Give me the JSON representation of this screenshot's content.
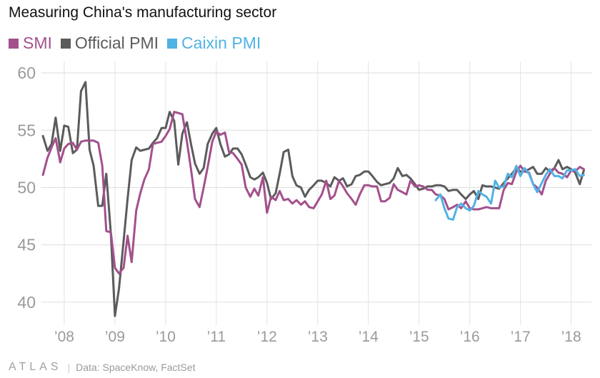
{
  "chart_data": {
    "type": "line",
    "title": "Measuring China's manufacturing sector",
    "xlabel": "",
    "ylabel": "",
    "ylim": [
      38,
      61
    ],
    "xlim": [
      2007.55,
      2018.4
    ],
    "yticks": [
      40,
      45,
      50,
      55,
      60
    ],
    "xticks": [
      {
        "value": 2008,
        "label": "’08"
      },
      {
        "value": 2009,
        "label": "’09"
      },
      {
        "value": 2010,
        "label": "’10"
      },
      {
        "value": 2011,
        "label": "’11"
      },
      {
        "value": 2012,
        "label": "’12"
      },
      {
        "value": 2013,
        "label": "’13"
      },
      {
        "value": 2014,
        "label": "’14"
      },
      {
        "value": 2015,
        "label": "’15"
      },
      {
        "value": 2016,
        "label": "’16"
      },
      {
        "value": 2017,
        "label": "’17"
      },
      {
        "value": 2018,
        "label": "’18"
      }
    ],
    "grid": true,
    "legend_position": "top-left",
    "series": [
      {
        "name": "SMI",
        "color": "#a3508c",
        "x": [
          2007.58,
          2007.67,
          2007.75,
          2007.83,
          2007.92,
          2008.0,
          2008.08,
          2008.17,
          2008.25,
          2008.33,
          2008.42,
          2008.5,
          2008.58,
          2008.67,
          2008.75,
          2008.83,
          2008.92,
          2009.0,
          2009.08,
          2009.17,
          2009.25,
          2009.33,
          2009.42,
          2009.5,
          2009.58,
          2009.67,
          2009.75,
          2009.83,
          2009.92,
          2010.0,
          2010.08,
          2010.17,
          2010.25,
          2010.33,
          2010.42,
          2010.5,
          2010.58,
          2010.67,
          2010.75,
          2010.83,
          2010.92,
          2011.0,
          2011.08,
          2011.17,
          2011.25,
          2011.33,
          2011.42,
          2011.5,
          2011.58,
          2011.67,
          2011.75,
          2011.83,
          2011.92,
          2012.0,
          2012.08,
          2012.17,
          2012.25,
          2012.33,
          2012.42,
          2012.5,
          2012.58,
          2012.67,
          2012.75,
          2012.83,
          2012.92,
          2013.0,
          2013.08,
          2013.17,
          2013.25,
          2013.33,
          2013.42,
          2013.5,
          2013.58,
          2013.67,
          2013.75,
          2013.83,
          2013.92,
          2014.0,
          2014.08,
          2014.17,
          2014.25,
          2014.33,
          2014.42,
          2014.5,
          2014.58,
          2014.67,
          2014.75,
          2014.83,
          2014.92,
          2015.0,
          2015.08,
          2015.17,
          2015.25,
          2015.33,
          2015.42,
          2015.5,
          2015.58,
          2015.67,
          2015.75,
          2015.83,
          2015.92,
          2016.0,
          2016.08,
          2016.17,
          2016.25,
          2016.33,
          2016.42,
          2016.5,
          2016.58,
          2016.67,
          2016.75,
          2016.83,
          2016.92,
          2017.0,
          2017.08,
          2017.17,
          2017.25,
          2017.33,
          2017.42,
          2017.5,
          2017.58,
          2017.67,
          2017.75,
          2017.83,
          2017.92,
          2018.0,
          2018.08,
          2018.17,
          2018.25
        ],
        "values": [
          51.1,
          52.6,
          53.5,
          54.3,
          52.2,
          53.4,
          53.8,
          53.9,
          53.3,
          54.0,
          54.1,
          54.1,
          54.1,
          53.9,
          51.9,
          46.2,
          46.1,
          43.0,
          42.5,
          43.0,
          45.8,
          43.5,
          48.0,
          49.5,
          50.7,
          51.6,
          53.8,
          53.9,
          54.0,
          54.5,
          55.1,
          56.6,
          56.5,
          56.4,
          54.0,
          51.6,
          49.0,
          48.3,
          50.0,
          51.8,
          54.0,
          54.9,
          54.6,
          54.8,
          53.1,
          53.0,
          52.5,
          52.0,
          50.0,
          49.2,
          49.9,
          49.3,
          50.9,
          47.8,
          49.2,
          48.9,
          49.7,
          48.9,
          49.0,
          48.6,
          48.9,
          48.5,
          48.8,
          48.3,
          48.2,
          48.8,
          49.4,
          50.6,
          49.0,
          49.3,
          50.6,
          50.1,
          49.5,
          49.0,
          48.5,
          49.4,
          50.2,
          50.2,
          50.1,
          50.1,
          48.8,
          48.8,
          49.1,
          50.3,
          49.8,
          49.6,
          49.4,
          50.6,
          50.1,
          50.2,
          50.1,
          49.8,
          49.8,
          49.4,
          49.3,
          49.0,
          48.1,
          48.3,
          48.5,
          48.2,
          48.8,
          48.2,
          48.1,
          48.1,
          48.2,
          48.3,
          48.2,
          48.2,
          48.2,
          49.8,
          50.4,
          50.3,
          51.4,
          51.9,
          51.4,
          51.3,
          50.3,
          50.0,
          49.4,
          50.6,
          51.2,
          51.7,
          51.3,
          51.2,
          50.9,
          51.5,
          51.4,
          51.8,
          51.6
        ]
      },
      {
        "name": "Official PMI",
        "color": "#5b5b5b",
        "x": [
          2007.58,
          2007.67,
          2007.75,
          2007.83,
          2007.92,
          2008.0,
          2008.08,
          2008.17,
          2008.25,
          2008.33,
          2008.42,
          2008.5,
          2008.58,
          2008.67,
          2008.75,
          2008.83,
          2008.92,
          2009.0,
          2009.08,
          2009.17,
          2009.25,
          2009.33,
          2009.42,
          2009.5,
          2009.58,
          2009.67,
          2009.75,
          2009.83,
          2009.92,
          2010.0,
          2010.08,
          2010.17,
          2010.25,
          2010.33,
          2010.42,
          2010.5,
          2010.58,
          2010.67,
          2010.75,
          2010.83,
          2010.92,
          2011.0,
          2011.08,
          2011.17,
          2011.25,
          2011.33,
          2011.42,
          2011.5,
          2011.58,
          2011.67,
          2011.75,
          2011.83,
          2011.92,
          2012.0,
          2012.08,
          2012.17,
          2012.25,
          2012.33,
          2012.42,
          2012.5,
          2012.58,
          2012.67,
          2012.75,
          2012.83,
          2012.92,
          2013.0,
          2013.08,
          2013.17,
          2013.25,
          2013.33,
          2013.42,
          2013.5,
          2013.58,
          2013.67,
          2013.75,
          2013.83,
          2013.92,
          2014.0,
          2014.08,
          2014.17,
          2014.25,
          2014.33,
          2014.42,
          2014.5,
          2014.58,
          2014.67,
          2014.75,
          2014.83,
          2014.92,
          2015.0,
          2015.08,
          2015.17,
          2015.25,
          2015.33,
          2015.42,
          2015.5,
          2015.58,
          2015.67,
          2015.75,
          2015.83,
          2015.92,
          2016.0,
          2016.08,
          2016.17,
          2016.25,
          2016.33,
          2016.42,
          2016.5,
          2016.58,
          2016.67,
          2016.75,
          2016.83,
          2016.92,
          2017.0,
          2017.08,
          2017.17,
          2017.25,
          2017.33,
          2017.42,
          2017.5,
          2017.58,
          2017.67,
          2017.75,
          2017.83,
          2017.92,
          2018.0,
          2018.08,
          2018.17,
          2018.25
        ],
        "values": [
          54.5,
          53.2,
          53.8,
          56.1,
          53.2,
          55.4,
          55.3,
          53.0,
          53.3,
          58.4,
          59.2,
          53.3,
          51.9,
          48.4,
          48.4,
          51.2,
          46.0,
          38.8,
          41.2,
          45.3,
          49.0,
          52.4,
          53.5,
          53.2,
          53.3,
          53.4,
          53.9,
          54.3,
          55.2,
          55.2,
          56.6,
          55.8,
          52.0,
          54.7,
          55.7,
          53.8,
          52.1,
          51.2,
          51.7,
          53.8,
          54.7,
          55.2,
          53.8,
          52.7,
          52.9,
          53.4,
          53.4,
          52.9,
          52.0,
          50.9,
          50.7,
          50.9,
          51.3,
          50.4,
          49.0,
          49.5,
          51.2,
          53.1,
          53.3,
          51.0,
          50.2,
          50.0,
          49.2,
          49.8,
          50.2,
          50.6,
          50.6,
          50.4,
          50.1,
          50.9,
          50.6,
          50.8,
          50.1,
          50.3,
          51.0,
          51.1,
          51.4,
          51.4,
          51.0,
          50.5,
          50.2,
          50.3,
          50.4,
          50.8,
          51.7,
          51.0,
          51.1,
          50.8,
          50.3,
          49.8,
          49.9,
          50.1,
          50.1,
          50.2,
          50.2,
          50.1,
          49.7,
          49.8,
          49.8,
          49.4,
          49.0,
          49.4,
          49.7,
          49.0,
          50.2,
          50.1,
          50.1,
          50.0,
          49.9,
          50.4,
          50.8,
          51.2,
          51.7,
          51.4,
          51.4,
          51.6,
          51.8,
          51.2,
          51.2,
          51.7,
          51.4,
          51.7,
          52.4,
          51.6,
          51.8,
          51.6,
          51.3,
          50.3,
          51.5
        ]
      },
      {
        "name": "Caixin PMI",
        "color": "#51b2e4",
        "x": [
          2015.33,
          2015.42,
          2015.5,
          2015.58,
          2015.67,
          2015.75,
          2015.83,
          2015.92,
          2016.0,
          2016.08,
          2016.17,
          2016.25,
          2016.33,
          2016.42,
          2016.5,
          2016.58,
          2016.67,
          2016.75,
          2016.83,
          2016.92,
          2017.0,
          2017.08,
          2017.17,
          2017.25,
          2017.33,
          2017.42,
          2017.5,
          2017.58,
          2017.67,
          2017.75,
          2017.83,
          2017.92,
          2018.0,
          2018.08,
          2018.17,
          2018.25
        ],
        "values": [
          48.9,
          49.4,
          48.2,
          47.3,
          47.2,
          48.3,
          48.6,
          48.2,
          48.0,
          48.4,
          49.7,
          49.4,
          49.2,
          48.6,
          50.6,
          50.0,
          50.1,
          51.2,
          50.9,
          51.9,
          51.0,
          51.7,
          51.2,
          50.3,
          49.6,
          50.4,
          51.1,
          51.6,
          51.0,
          51.0,
          50.8,
          51.5,
          51.5,
          51.6,
          51.0,
          51.1
        ]
      }
    ]
  },
  "legend": [
    {
      "label": "SMI",
      "color": "#a3508c"
    },
    {
      "label": "Official PMI",
      "color": "#5b5b5b"
    },
    {
      "label": "Caixin PMI",
      "color": "#51b2e4"
    }
  ],
  "footer": {
    "logo": "ATLAS",
    "separator": "|",
    "source": "Data: SpaceKnow, FactSet"
  }
}
